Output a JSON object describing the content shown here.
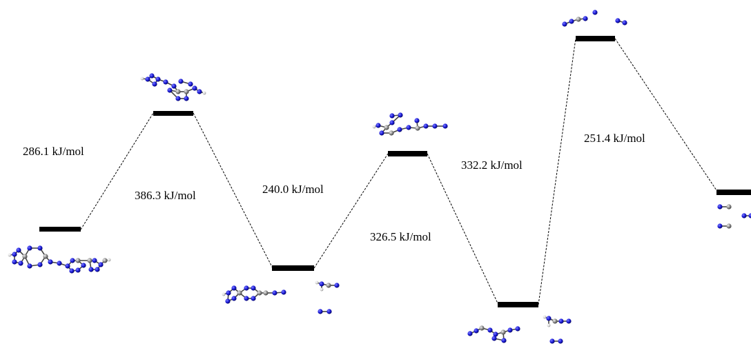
{
  "diagram": {
    "levels": [
      {
        "id": "start"
      },
      {
        "id": "ts1"
      },
      {
        "id": "int1"
      },
      {
        "id": "ts2"
      },
      {
        "id": "int2"
      },
      {
        "id": "ts3"
      },
      {
        "id": "product"
      }
    ],
    "barriers": [
      {
        "value": "286.1",
        "unit": "kJ/mol"
      },
      {
        "value": "386.3",
        "unit": "kJ/mol"
      },
      {
        "value": "240.0",
        "unit": "kJ/mol"
      },
      {
        "value": "326.5",
        "unit": "kJ/mol"
      },
      {
        "value": "332.2",
        "unit": "kJ/mol"
      },
      {
        "value": "251.4",
        "unit": "kJ/mol"
      }
    ],
    "atom_colors": {
      "nitrogen": "#1a1ad8",
      "carbon": "#8c8c8c",
      "hydrogen": "#d8d8d8"
    }
  }
}
